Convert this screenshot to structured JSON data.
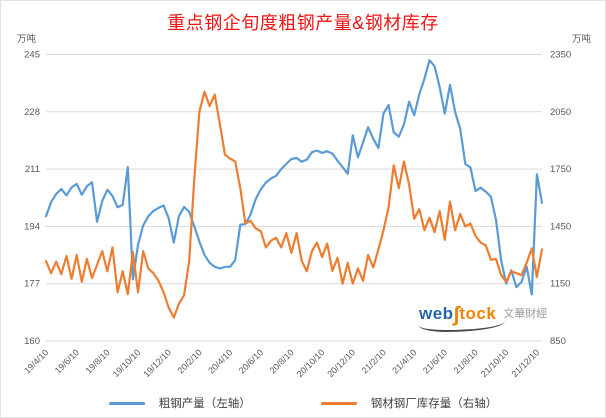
{
  "header": {
    "title": "重点钢企旬度粗钢产量&钢材库存",
    "title_color": "#f01414",
    "left_unit": "万吨",
    "right_unit": "万吨"
  },
  "watermark": {
    "web": "web",
    "s": "∫",
    "tock": "tock",
    "cn": "文華財經"
  },
  "chart_data": {
    "type": "line",
    "title": "重点钢企旬度粗钢产量&钢材库存",
    "grid": "horizontal-only",
    "legend_position": "bottom",
    "background": "#ffffff",
    "grid_color": "#d9d9d9",
    "tick_color": "#595959",
    "x_tick_labels": [
      "19/4/10",
      "19/6/10",
      "19/8/10",
      "19/10/10",
      "19/12/10",
      "20/2/10",
      "20/4/10",
      "20/6/10",
      "20/8/10",
      "20/10/10",
      "20/12/10",
      "21/2/10",
      "21/4/10",
      "21/6/10",
      "21/8/10",
      "21/10/10",
      "21/12/10"
    ],
    "x_points_per_tick": 6,
    "left_axis": {
      "unit": "万吨",
      "ticks": [
        245,
        228,
        211,
        194,
        177,
        160
      ],
      "range": [
        160,
        245
      ]
    },
    "right_axis": {
      "unit": "万吨",
      "ticks": [
        2350,
        2050,
        1750,
        1450,
        1150,
        850
      ],
      "range": [
        850,
        2350
      ]
    },
    "series": [
      {
        "name": "粗钢产量（左轴）",
        "axis": "left",
        "color": "#5B9BD5",
        "values": [
          197.0,
          201.2,
          203.6,
          205.1,
          203.2,
          205.6,
          206.6,
          203.4,
          205.9,
          207.1,
          195.4,
          201.5,
          204.9,
          203.0,
          199.7,
          200.4,
          211.6,
          178.3,
          188.5,
          194.3,
          197.0,
          198.6,
          199.5,
          200.2,
          196.4,
          189.2,
          197.0,
          199.8,
          198.3,
          194.0,
          189.5,
          185.5,
          183.2,
          182.0,
          181.5,
          182.0,
          182.0,
          184.0,
          194.5,
          194.7,
          197.5,
          202.0,
          205.0,
          207.0,
          208.2,
          209.0,
          211.0,
          212.5,
          214.0,
          214.3,
          213.2,
          213.8,
          216.0,
          216.5,
          215.8,
          216.3,
          215.6,
          213.5,
          211.6,
          209.6,
          221.0,
          214.5,
          218.9,
          223.4,
          220.0,
          217.3,
          227.5,
          230.0,
          221.9,
          220.6,
          224.2,
          231.0,
          227.0,
          233.2,
          237.8,
          243.3,
          241.5,
          235.3,
          227.5,
          236.0,
          228.0,
          223.0,
          212.5,
          211.5,
          204.5,
          205.5,
          204.3,
          202.8,
          196.0,
          184.0,
          177.0,
          181.0,
          176.0,
          177.5,
          182.0,
          173.8,
          209.5,
          201.0
        ]
      },
      {
        "name": "钢材钢厂库存量（右轴）",
        "axis": "right",
        "color": "#ED7D31",
        "values": [
          1268,
          1205,
          1265,
          1200,
          1295,
          1175,
          1300,
          1160,
          1280,
          1180,
          1250,
          1320,
          1215,
          1340,
          1105,
          1215,
          1095,
          1315,
          1105,
          1320,
          1230,
          1205,
          1165,
          1105,
          1025,
          973,
          1045,
          1090,
          1270,
          1700,
          2050,
          2155,
          2080,
          2140,
          1985,
          1825,
          1805,
          1790,
          1650,
          1465,
          1480,
          1440,
          1425,
          1340,
          1375,
          1390,
          1340,
          1415,
          1311,
          1415,
          1270,
          1215,
          1320,
          1365,
          1290,
          1360,
          1217,
          1285,
          1150,
          1260,
          1150,
          1230,
          1165,
          1300,
          1235,
          1330,
          1430,
          1550,
          1770,
          1650,
          1790,
          1670,
          1490,
          1540,
          1430,
          1495,
          1420,
          1530,
          1380,
          1580,
          1430,
          1515,
          1450,
          1465,
          1400,
          1365,
          1350,
          1275,
          1280,
          1195,
          1160,
          1215,
          1205,
          1195,
          1260,
          1335,
          1185,
          1330
        ]
      }
    ]
  }
}
